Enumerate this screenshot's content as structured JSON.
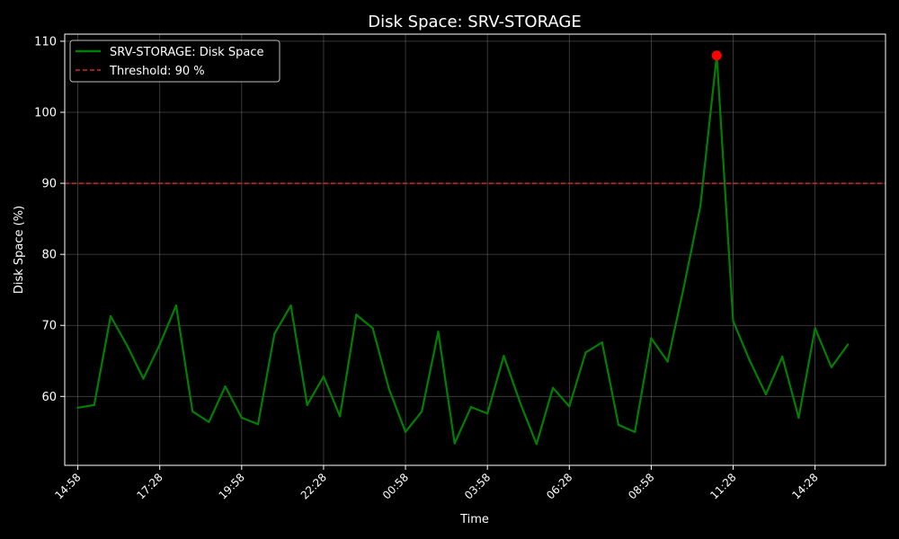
{
  "chart_data": {
    "type": "line",
    "title": "Disk Space: SRV-STORAGE",
    "xlabel": "Time",
    "ylabel": "Disk Space (%)",
    "xlim": [
      -0.8,
      49.3
    ],
    "ylim": [
      50.3,
      111.0
    ],
    "x_ticks": [
      {
        "x": 0,
        "label": "14:58"
      },
      {
        "x": 5,
        "label": "17:28"
      },
      {
        "x": 10,
        "label": "19:58"
      },
      {
        "x": 15,
        "label": "22:28"
      },
      {
        "x": 20,
        "label": "00:58"
      },
      {
        "x": 25,
        "label": "03:58"
      },
      {
        "x": 30,
        "label": "06:28"
      },
      {
        "x": 35,
        "label": "08:58"
      },
      {
        "x": 40,
        "label": "11:28"
      },
      {
        "x": 45,
        "label": "14:28"
      }
    ],
    "y_ticks": [
      60,
      70,
      80,
      90,
      100,
      110
    ],
    "grid": true,
    "legend_position": "top-left",
    "series": [
      {
        "name": "SRV-STORAGE: Disk Space",
        "color": "#008000",
        "values": [
          58.4,
          58.8,
          71.3,
          67.2,
          62.5,
          67.3,
          72.8,
          57.9,
          56.4,
          61.4,
          57.0,
          56.1,
          68.8,
          72.8,
          58.8,
          62.8,
          57.2,
          71.5,
          69.6,
          61.0,
          55.0,
          57.9,
          69.1,
          53.4,
          58.5,
          57.6,
          65.7,
          59.1,
          53.3,
          61.2,
          58.6,
          66.2,
          67.6,
          56.0,
          55.0,
          68.2,
          64.9,
          75.5,
          86.8,
          108.0,
          70.6,
          65.1,
          60.3,
          65.6,
          57.0,
          69.6,
          64.1,
          67.3
        ]
      }
    ],
    "threshold": {
      "label": "Threshold: 90 %",
      "value": 90,
      "color": "#d62728"
    },
    "peak_marker": {
      "index": 39,
      "color": "#ff0000"
    },
    "colors": {
      "background": "#000000",
      "grid": "#808080",
      "axis": "#ffffff",
      "text": "#ffffff"
    }
  }
}
